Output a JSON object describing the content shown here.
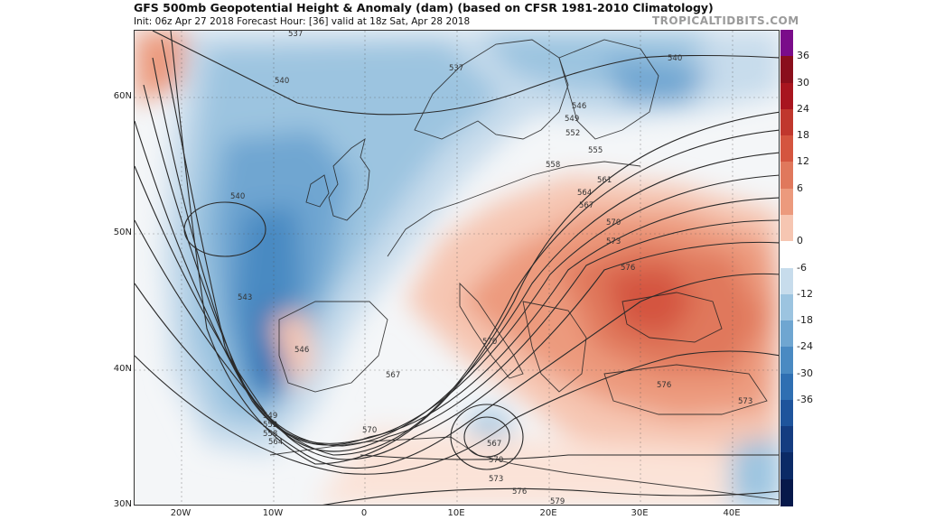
{
  "header": {
    "title": "GFS 500mb Geopotential Height & Anomaly (dam) (based on CFSR 1981-2010 Climatology)",
    "subtitle": "Init: 06z Apr 27 2018   Forecast Hour: [36]   valid at 18z Sat, Apr 28 2018",
    "brand": "TROPICALTIDBITS.COM"
  },
  "colorbar": {
    "ticks": [
      "36",
      "30",
      "24",
      "18",
      "12",
      "6",
      "0",
      "-6",
      "-12",
      "-18",
      "-24",
      "-30",
      "-36"
    ],
    "colors": [
      "#7a0c8a",
      "#8a0f1c",
      "#a8151f",
      "#c0372d",
      "#d4553f",
      "#e0785c",
      "#ec9a7d",
      "#f6c6b2",
      "#ffffff",
      "#c7dcec",
      "#9cc4e0",
      "#6fa6d1",
      "#4a8ac2",
      "#2f6fb2",
      "#1e549c",
      "#143c80",
      "#0b2a66",
      "#06184a"
    ]
  },
  "axes": {
    "lat_labels": [
      "60N",
      "50N",
      "40N",
      "30N"
    ],
    "lon_labels": [
      "20W",
      "10W",
      "0",
      "10E",
      "20E",
      "30E",
      "40E"
    ]
  },
  "contour_labels": [
    "537",
    "540",
    "537",
    "540",
    "546",
    "549",
    "552",
    "555",
    "558",
    "561",
    "564",
    "567",
    "570",
    "573",
    "576",
    "540",
    "543",
    "546",
    "549",
    "552",
    "558",
    "564",
    "567",
    "570",
    "570",
    "567",
    "570",
    "573",
    "576",
    "579",
    "576",
    "573"
  ]
}
